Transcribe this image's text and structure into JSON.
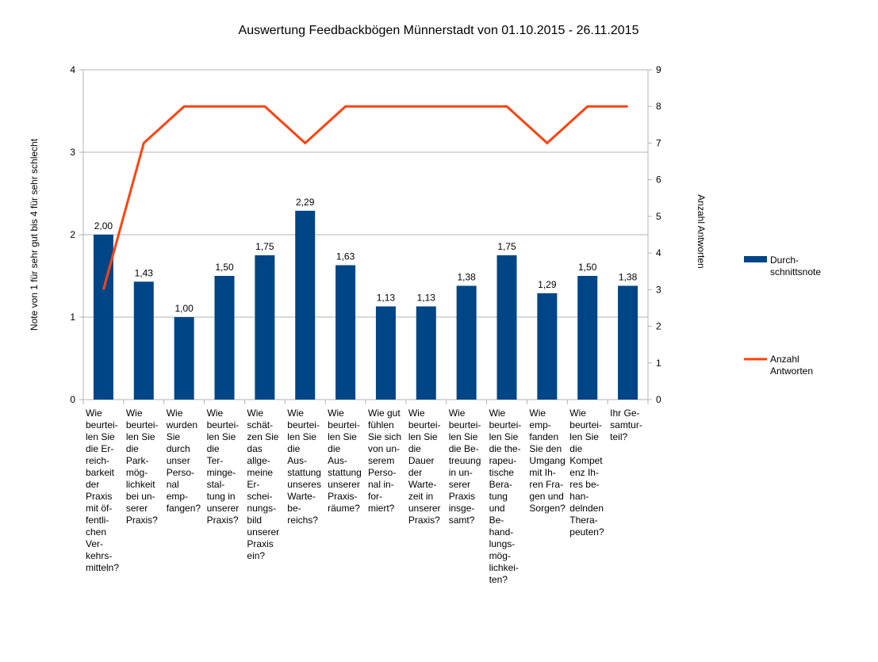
{
  "chart_data": {
    "type": "bar+line",
    "title": "Auswertung Feedbackbögen Münnerstadt von 01.10.2015 - 26.11.2015",
    "ylabel": "Note von 1 für sehr gut bis 4 für sehr schlecht",
    "y2label": "Anzahl Antworten",
    "ylim": [
      0,
      4
    ],
    "y2lim": [
      0,
      9
    ],
    "yticks": [
      "0",
      "1",
      "2",
      "3",
      "4"
    ],
    "y2ticks": [
      "0",
      "1",
      "2",
      "3",
      "4",
      "5",
      "6",
      "7",
      "8",
      "9"
    ],
    "grid": true,
    "legend_position": "right",
    "categories": [
      [
        "Wie",
        "beurtei-",
        "len Sie",
        "die Er-",
        "reich-",
        "barkeit",
        "der",
        "Praxis",
        "mit öf-",
        "fentli-",
        "chen",
        "Ver-",
        "kehrs-",
        "mitteln?"
      ],
      [
        "Wie",
        "beurtei-",
        "len Sie",
        "die",
        "Park-",
        "mög-",
        "lichkeit",
        "bei un-",
        "serer",
        "Praxis?"
      ],
      [
        "Wie",
        "wurden",
        "Sie",
        "durch",
        "unser",
        "Perso-",
        "nal",
        "emp-",
        "fangen?"
      ],
      [
        "Wie",
        "beurtei-",
        "len Sie",
        "die",
        "Ter-",
        "minge-",
        "stal-",
        "tung in",
        "unserer",
        "Praxis?"
      ],
      [
        "Wie",
        "schät-",
        "zen Sie",
        "das",
        "allge-",
        "meine",
        "Er-",
        "schei-",
        "nungs-",
        "bild",
        "unserer",
        "Praxis",
        "ein?"
      ],
      [
        "Wie",
        "beurtei-",
        "len Sie",
        "die",
        "Aus-",
        "stattung",
        "unseres",
        "Warte-",
        "be-",
        "reichs?"
      ],
      [
        "Wie",
        "beurtei-",
        "len Sie",
        "die",
        "Aus-",
        "stattung",
        "unserer",
        "Praxis-",
        "räume?"
      ],
      [
        "Wie gut",
        "fühlen",
        "Sie sich",
        "von un-",
        "serem",
        "Perso-",
        "nal in-",
        "for-",
        "miert?"
      ],
      [
        "Wie",
        "beurtei-",
        "len Sie",
        "die",
        "Dauer",
        "der",
        "Warte-",
        "zeit in",
        "unserer",
        "Praxis?"
      ],
      [
        "Wie",
        "beurtei-",
        "len Sie",
        "die Be-",
        "treuung",
        "in un-",
        "serer",
        "Praxis",
        "insge-",
        "samt?"
      ],
      [
        "Wie",
        "beurtei-",
        "len Sie",
        "die the-",
        "rapeu-",
        "tische",
        "Bera-",
        "tung",
        "und",
        "Be-",
        "hand-",
        "lungs-",
        "mög-",
        "lichkei-",
        "ten?"
      ],
      [
        "Wie",
        "emp-",
        "fanden",
        "Sie den",
        "Umgang",
        "mit Ih-",
        "ren Fra-",
        "gen und",
        "Sorgen?"
      ],
      [
        "Wie",
        "beurtei-",
        "len Sie",
        "die",
        "Kompet",
        "enz Ih-",
        "res be-",
        "han-",
        "delnden",
        "Thera-",
        "peuten?"
      ],
      [
        "Ihr Ge-",
        "samtur-",
        "teil?"
      ]
    ],
    "series": [
      {
        "name": "Durch-schnittsnote",
        "legend_lines": [
          "Durch-",
          "schnittsnote"
        ],
        "type": "bar",
        "axis": "left",
        "color": "#004586",
        "values": [
          2.0,
          1.43,
          1.0,
          1.5,
          1.75,
          2.29,
          1.63,
          1.13,
          1.13,
          1.38,
          1.75,
          1.29,
          1.5,
          1.38
        ],
        "labels": [
          "2,00",
          "1,43",
          "1,00",
          "1,50",
          "1,75",
          "2,29",
          "1,63",
          "1,13",
          "1,13",
          "1,38",
          "1,75",
          "1,29",
          "1,50",
          "1,38"
        ]
      },
      {
        "name": "Anzahl Antworten",
        "legend_lines": [
          "Anzahl",
          "Antworten"
        ],
        "type": "line",
        "axis": "right",
        "color": "#ff420e",
        "values": [
          3,
          7,
          8,
          8,
          8,
          7,
          8,
          8,
          8,
          8,
          8,
          7,
          8,
          8
        ]
      }
    ]
  }
}
